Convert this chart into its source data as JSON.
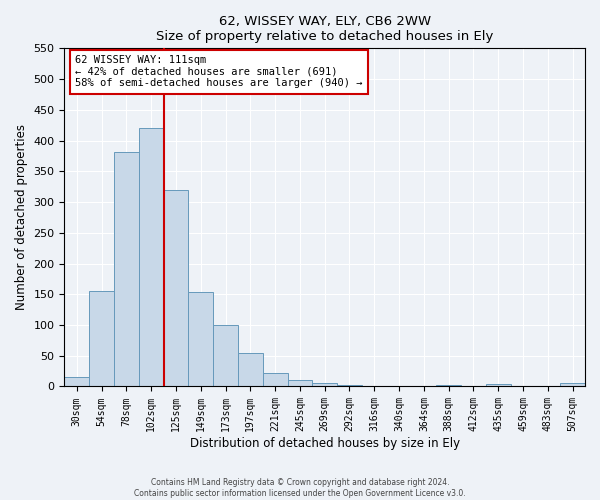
{
  "title": "62, WISSEY WAY, ELY, CB6 2WW",
  "subtitle": "Size of property relative to detached houses in Ely",
  "xlabel": "Distribution of detached houses by size in Ely",
  "ylabel": "Number of detached properties",
  "bar_labels": [
    "30sqm",
    "54sqm",
    "78sqm",
    "102sqm",
    "125sqm",
    "149sqm",
    "173sqm",
    "197sqm",
    "221sqm",
    "245sqm",
    "269sqm",
    "292sqm",
    "316sqm",
    "340sqm",
    "364sqm",
    "388sqm",
    "412sqm",
    "435sqm",
    "459sqm",
    "483sqm",
    "507sqm"
  ],
  "bar_values": [
    15,
    155,
    382,
    420,
    320,
    153,
    100,
    55,
    22,
    10,
    6,
    3,
    1,
    0,
    0,
    3,
    0,
    4,
    0,
    0,
    5
  ],
  "bar_color": "#c8d8e8",
  "bar_edge_color": "#6699bb",
  "vline_x_index": 3,
  "vline_color": "#cc0000",
  "ylim": [
    0,
    550
  ],
  "yticks": [
    0,
    50,
    100,
    150,
    200,
    250,
    300,
    350,
    400,
    450,
    500,
    550
  ],
  "annotation_title": "62 WISSEY WAY: 111sqm",
  "annotation_line1": "← 42% of detached houses are smaller (691)",
  "annotation_line2": "58% of semi-detached houses are larger (940) →",
  "annotation_box_color": "#ffffff",
  "annotation_box_edge": "#cc0000",
  "footer_line1": "Contains HM Land Registry data © Crown copyright and database right 2024.",
  "footer_line2": "Contains public sector information licensed under the Open Government Licence v3.0.",
  "bg_color": "#eef2f7",
  "grid_color": "#ffffff"
}
